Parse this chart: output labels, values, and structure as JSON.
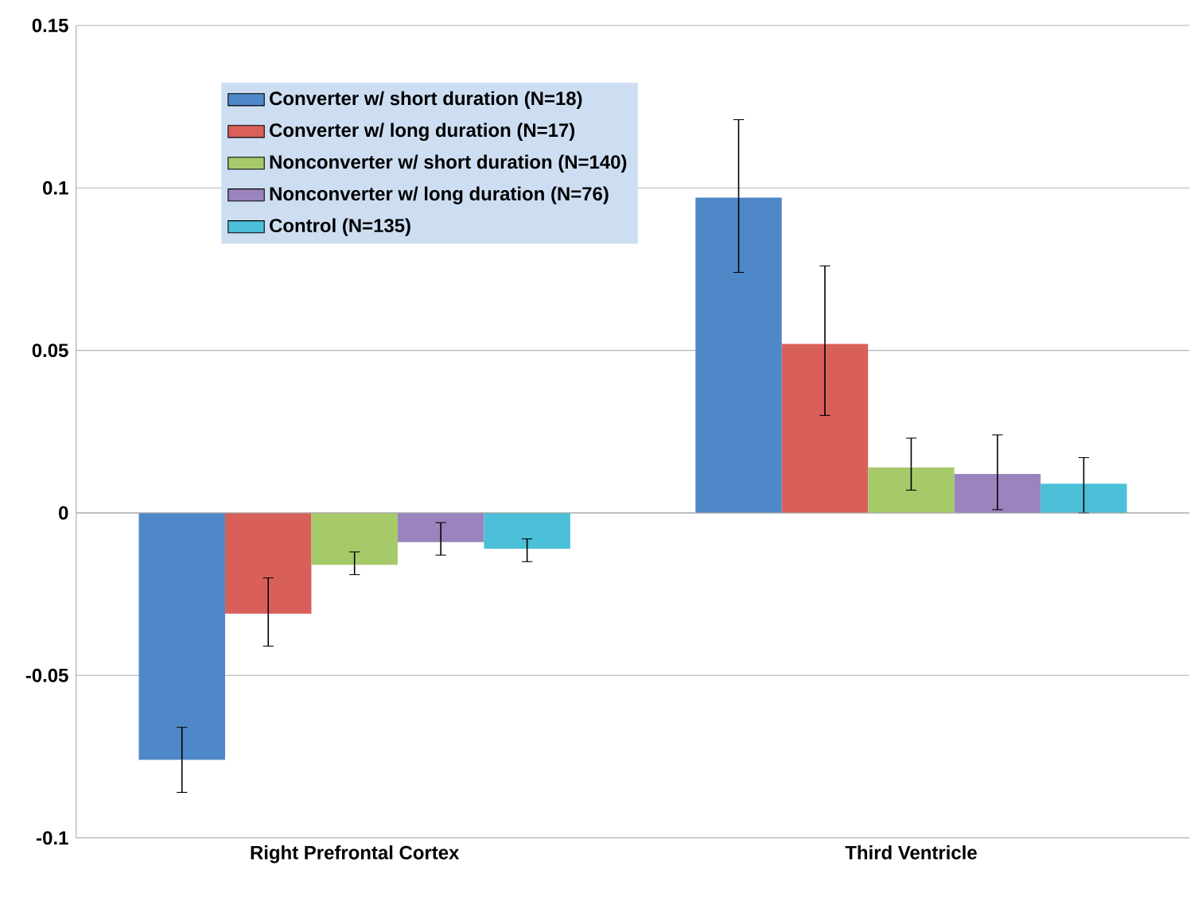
{
  "chart_data": {
    "type": "bar",
    "categories": [
      "Right Prefrontal Cortex",
      "Third Ventricle"
    ],
    "series": [
      {
        "name": "Converter w/ short duration (N=18)",
        "color": "#4f88c8",
        "values": [
          -0.076,
          0.097
        ],
        "errors": [
          [
            -0.086,
            -0.066
          ],
          [
            0.074,
            0.121
          ]
        ]
      },
      {
        "name": "Converter w/ long duration (N=17)",
        "color": "#d9605a",
        "values": [
          -0.031,
          0.052
        ],
        "errors": [
          [
            -0.041,
            -0.02
          ],
          [
            0.03,
            0.076
          ]
        ]
      },
      {
        "name": "Nonconverter w/ short duration (N=140)",
        "color": "#a6c96a",
        "values": [
          -0.016,
          0.014
        ],
        "errors": [
          [
            -0.019,
            -0.012
          ],
          [
            0.007,
            0.023
          ]
        ]
      },
      {
        "name": "Nonconverter w/ long duration (N=76)",
        "color": "#9b84be",
        "values": [
          -0.009,
          0.012
        ],
        "errors": [
          [
            -0.013,
            -0.003
          ],
          [
            0.001,
            0.024
          ]
        ]
      },
      {
        "name": "Control (N=135)",
        "color": "#4bc0d8",
        "values": [
          -0.011,
          0.009
        ],
        "errors": [
          [
            -0.015,
            -0.008
          ],
          [
            0.0,
            0.017
          ]
        ]
      }
    ],
    "ylim": [
      -0.1,
      0.15
    ],
    "yticks": [
      -0.1,
      -0.05,
      0,
      0.05,
      0.1,
      0.15
    ],
    "grid": "y",
    "legend": "top left"
  }
}
